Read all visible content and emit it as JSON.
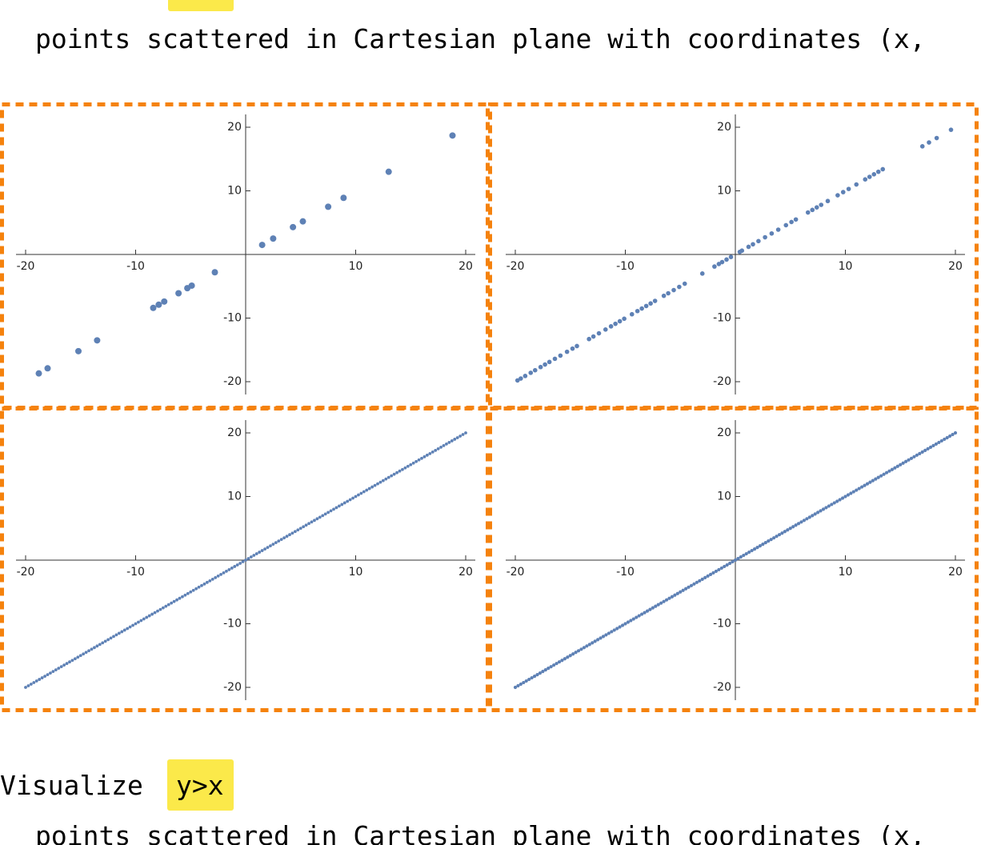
{
  "header": {
    "text": "points scattered in Cartesian plane with coordinates (x,"
  },
  "chart_data": [
    {
      "type": "scatter",
      "color": "#5e81b5",
      "x": [
        -18.8,
        -18,
        -15.2,
        -13.5,
        -8.4,
        -7.9,
        -7.4,
        -6.1,
        -5.3,
        -4.9,
        -2.8,
        1.5,
        2.5,
        4.3,
        5.2,
        7.5,
        8.9,
        13,
        18.8
      ],
      "values": [
        -18.7,
        -17.9,
        -15.2,
        -13.5,
        -8.4,
        -7.9,
        -7.4,
        -6.1,
        -5.3,
        -4.9,
        -2.8,
        1.5,
        2.5,
        4.3,
        5.2,
        7.5,
        8.9,
        13,
        18.7
      ],
      "xlim": [
        -20,
        20
      ],
      "ylim": [
        -20,
        20
      ],
      "xticks": [
        -20,
        -10,
        10,
        20
      ],
      "yticks": [
        -20,
        -10,
        10,
        20
      ]
    },
    {
      "type": "scatter",
      "color": "#5e81b5",
      "x": [
        -19.8,
        -19.5,
        -19.1,
        -18.6,
        -18.2,
        -17.7,
        -17.3,
        -16.9,
        -16.4,
        -15.9,
        -15.3,
        -14.8,
        -14.4,
        -13.3,
        -12.9,
        -12.4,
        -11.8,
        -11.3,
        -10.9,
        -10.5,
        -10.1,
        -9.4,
        -8.9,
        -8.5,
        -8.1,
        -7.7,
        -7.3,
        -6.5,
        -6.1,
        -5.6,
        -5.1,
        -4.6,
        -3,
        -1.9,
        -1.5,
        -1.2,
        -0.8,
        -0.4,
        0.4,
        0.6,
        1.2,
        1.6,
        2.1,
        2.7,
        3.3,
        3.9,
        4.6,
        5.1,
        5.5,
        6.6,
        7,
        7.4,
        7.8,
        8.4,
        9.3,
        9.8,
        10.3,
        11,
        11.8,
        12.2,
        12.6,
        13,
        13.4,
        17,
        17.6,
        18.3,
        19.6
      ],
      "values": [
        -19.8,
        -19.5,
        -19.1,
        -18.6,
        -18.2,
        -17.7,
        -17.3,
        -16.9,
        -16.4,
        -15.9,
        -15.3,
        -14.8,
        -14.4,
        -13.3,
        -12.9,
        -12.4,
        -11.8,
        -11.3,
        -10.9,
        -10.5,
        -10.1,
        -9.4,
        -8.9,
        -8.5,
        -8.1,
        -7.7,
        -7.3,
        -6.5,
        -6.1,
        -5.6,
        -5.1,
        -4.6,
        -3,
        -1.9,
        -1.5,
        -1.2,
        -0.8,
        -0.4,
        0.4,
        0.6,
        1.2,
        1.6,
        2.1,
        2.7,
        3.3,
        3.9,
        4.6,
        5.1,
        5.5,
        6.6,
        7,
        7.4,
        7.8,
        8.4,
        9.3,
        9.8,
        10.3,
        11,
        11.8,
        12.2,
        12.6,
        13,
        13.4,
        17,
        17.6,
        18.3,
        19.6
      ],
      "xlim": [
        -20,
        20
      ],
      "ylim": [
        -20,
        20
      ],
      "xticks": [
        -20,
        -10,
        10,
        20
      ],
      "yticks": [
        -20,
        -10,
        10,
        20
      ]
    },
    {
      "type": "scatter",
      "color": "#5e81b5",
      "x": [
        -20,
        -19.75,
        -19.5,
        -19.25,
        -19,
        -18.75,
        -18.5,
        -18.25,
        -18,
        -17.75,
        -17.5,
        -17.25,
        -17,
        -16.75,
        -16.5,
        -16.25,
        -16,
        -15.75,
        -15.5,
        -15.25,
        -15,
        -14.75,
        -14.5,
        -14.25,
        -14,
        -13.75,
        -13.5,
        -13.25,
        -13,
        -12.75,
        -12.5,
        -12.25,
        -12,
        -11.75,
        -11.5,
        -11.25,
        -11,
        -10.75,
        -10.5,
        -10.25,
        -10,
        -9.75,
        -9.5,
        -9.25,
        -9,
        -8.75,
        -8.5,
        -8.25,
        -8,
        -7.75,
        -7.5,
        -7.25,
        -7,
        -6.75,
        -6.5,
        -6.25,
        -6,
        -5.75,
        -5.5,
        -5.25,
        -5,
        -4.75,
        -4.5,
        -4.25,
        -4,
        -3.75,
        -3.5,
        -3.25,
        -3,
        -2.75,
        -2.5,
        -2.25,
        -2,
        -1.75,
        -1.5,
        -1.25,
        -1,
        -0.75,
        -0.5,
        -0.25,
        0,
        0.25,
        0.5,
        0.75,
        1,
        1.25,
        1.5,
        1.75,
        2,
        2.25,
        2.5,
        2.75,
        3,
        3.25,
        3.5,
        3.75,
        4,
        4.25,
        4.5,
        4.75,
        5,
        5.25,
        5.5,
        5.75,
        6,
        6.25,
        6.5,
        6.75,
        7,
        7.25,
        7.5,
        7.75,
        8,
        8.25,
        8.5,
        8.75,
        9,
        9.25,
        9.5,
        9.75,
        10,
        10.25,
        10.5,
        10.75,
        11,
        11.25,
        11.5,
        11.75,
        12,
        12.25,
        12.5,
        12.75,
        13,
        13.25,
        13.5,
        13.75,
        14,
        14.25,
        14.5,
        14.75,
        15,
        15.25,
        15.5,
        15.75,
        16,
        16.25,
        16.5,
        16.75,
        17,
        17.25,
        17.5,
        17.75,
        18,
        18.25,
        18.5,
        18.75,
        19,
        19.25,
        19.5,
        19.75,
        20
      ],
      "values": [
        -20,
        -19.75,
        -19.5,
        -19.25,
        -19,
        -18.75,
        -18.5,
        -18.25,
        -18,
        -17.75,
        -17.5,
        -17.25,
        -17,
        -16.75,
        -16.5,
        -16.25,
        -16,
        -15.75,
        -15.5,
        -15.25,
        -15,
        -14.75,
        -14.5,
        -14.25,
        -14,
        -13.75,
        -13.5,
        -13.25,
        -13,
        -12.75,
        -12.5,
        -12.25,
        -12,
        -11.75,
        -11.5,
        -11.25,
        -11,
        -10.75,
        -10.5,
        -10.25,
        -10,
        -9.75,
        -9.5,
        -9.25,
        -9,
        -8.75,
        -8.5,
        -8.25,
        -8,
        -7.75,
        -7.5,
        -7.25,
        -7,
        -6.75,
        -6.5,
        -6.25,
        -6,
        -5.75,
        -5.5,
        -5.25,
        -5,
        -4.75,
        -4.5,
        -4.25,
        -4,
        -3.75,
        -3.5,
        -3.25,
        -3,
        -2.75,
        -2.5,
        -2.25,
        -2,
        -1.75,
        -1.5,
        -1.25,
        -1,
        -0.75,
        -0.5,
        -0.25,
        0,
        0.25,
        0.5,
        0.75,
        1,
        1.25,
        1.5,
        1.75,
        2,
        2.25,
        2.5,
        2.75,
        3,
        3.25,
        3.5,
        3.75,
        4,
        4.25,
        4.5,
        4.75,
        5,
        5.25,
        5.5,
        5.75,
        6,
        6.25,
        6.5,
        6.75,
        7,
        7.25,
        7.5,
        7.75,
        8,
        8.25,
        8.5,
        8.75,
        9,
        9.25,
        9.5,
        9.75,
        10,
        10.25,
        10.5,
        10.75,
        11,
        11.25,
        11.5,
        11.75,
        12,
        12.25,
        12.5,
        12.75,
        13,
        13.25,
        13.5,
        13.75,
        14,
        14.25,
        14.5,
        14.75,
        15,
        15.25,
        15.5,
        15.75,
        16,
        16.25,
        16.5,
        16.75,
        17,
        17.25,
        17.5,
        17.75,
        18,
        18.25,
        18.5,
        18.75,
        19,
        19.25,
        19.5,
        19.75,
        20
      ],
      "xlim": [
        -20,
        20
      ],
      "ylim": [
        -20,
        20
      ],
      "xticks": [
        -20,
        -10,
        10,
        20
      ],
      "yticks": [
        -20,
        -10,
        10,
        20
      ]
    },
    {
      "type": "scatter",
      "color": "#5e81b5",
      "x": [
        -20,
        -19.75,
        -19.5,
        -19.25,
        -19,
        -18.75,
        -18.5,
        -18.25,
        -18,
        -17.75,
        -17.5,
        -17.25,
        -17,
        -16.75,
        -16.5,
        -16.25,
        -16,
        -15.75,
        -15.5,
        -15.25,
        -15,
        -14.75,
        -14.5,
        -14.25,
        -14,
        -13.75,
        -13.5,
        -13.25,
        -13,
        -12.75,
        -12.5,
        -12.25,
        -12,
        -11.75,
        -11.5,
        -11.25,
        -11,
        -10.75,
        -10.5,
        -10.25,
        -10,
        -9.75,
        -9.5,
        -9.25,
        -9,
        -8.75,
        -8.5,
        -8.25,
        -8,
        -7.75,
        -7.5,
        -7.25,
        -7,
        -6.75,
        -6.5,
        -6.25,
        -6,
        -5.75,
        -5.5,
        -5.25,
        -5,
        -4.75,
        -4.5,
        -4.25,
        -4,
        -3.75,
        -3.5,
        -3.25,
        -3,
        -2.75,
        -2.5,
        -2.25,
        -2,
        -1.75,
        -1.5,
        -1.25,
        -1,
        -0.75,
        -0.5,
        -0.25,
        0,
        0.25,
        0.5,
        0.75,
        1,
        1.25,
        1.5,
        1.75,
        2,
        2.25,
        2.5,
        2.75,
        3,
        3.25,
        3.5,
        3.75,
        4,
        4.25,
        4.5,
        4.75,
        5,
        5.25,
        5.5,
        5.75,
        6,
        6.25,
        6.5,
        6.75,
        7,
        7.25,
        7.5,
        7.75,
        8,
        8.25,
        8.5,
        8.75,
        9,
        9.25,
        9.5,
        9.75,
        10,
        10.25,
        10.5,
        10.75,
        11,
        11.25,
        11.5,
        11.75,
        12,
        12.25,
        12.5,
        12.75,
        13,
        13.25,
        13.5,
        13.75,
        14,
        14.25,
        14.5,
        14.75,
        15,
        15.25,
        15.5,
        15.75,
        16,
        16.25,
        16.5,
        16.75,
        17,
        17.25,
        17.5,
        17.75,
        18,
        18.25,
        18.5,
        18.75,
        19,
        19.25,
        19.5,
        19.75,
        20
      ],
      "values": [
        -20,
        -19.75,
        -19.5,
        -19.25,
        -19,
        -18.75,
        -18.5,
        -18.25,
        -18,
        -17.75,
        -17.5,
        -17.25,
        -17,
        -16.75,
        -16.5,
        -16.25,
        -16,
        -15.75,
        -15.5,
        -15.25,
        -15,
        -14.75,
        -14.5,
        -14.25,
        -14,
        -13.75,
        -13.5,
        -13.25,
        -13,
        -12.75,
        -12.5,
        -12.25,
        -12,
        -11.75,
        -11.5,
        -11.25,
        -11,
        -10.75,
        -10.5,
        -10.25,
        -10,
        -9.75,
        -9.5,
        -9.25,
        -9,
        -8.75,
        -8.5,
        -8.25,
        -8,
        -7.75,
        -7.5,
        -7.25,
        -7,
        -6.75,
        -6.5,
        -6.25,
        -6,
        -5.75,
        -5.5,
        -5.25,
        -5,
        -4.75,
        -4.5,
        -4.25,
        -4,
        -3.75,
        -3.5,
        -3.25,
        -3,
        -2.75,
        -2.5,
        -2.25,
        -2,
        -1.75,
        -1.5,
        -1.25,
        -1,
        -0.75,
        -0.5,
        -0.25,
        0,
        0.25,
        0.5,
        0.75,
        1,
        1.25,
        1.5,
        1.75,
        2,
        2.25,
        2.5,
        2.75,
        3,
        3.25,
        3.5,
        3.75,
        4,
        4.25,
        4.5,
        4.75,
        5,
        5.25,
        5.5,
        5.75,
        6,
        6.25,
        6.5,
        6.75,
        7,
        7.25,
        7.5,
        7.75,
        8,
        8.25,
        8.5,
        8.75,
        9,
        9.25,
        9.5,
        9.75,
        10,
        10.25,
        10.5,
        10.75,
        11,
        11.25,
        11.5,
        11.75,
        12,
        12.25,
        12.5,
        12.75,
        13,
        13.25,
        13.5,
        13.75,
        14,
        14.25,
        14.5,
        14.75,
        15,
        15.25,
        15.5,
        15.75,
        16,
        16.25,
        16.5,
        16.75,
        17,
        17.25,
        17.5,
        17.75,
        18,
        18.25,
        18.5,
        18.75,
        19,
        19.25,
        19.5,
        19.75,
        20
      ],
      "xlim": [
        -20,
        20
      ],
      "ylim": [
        -20,
        20
      ],
      "xticks": [
        -20,
        -10,
        10,
        20
      ],
      "yticks": [
        -20,
        -10,
        10,
        20
      ]
    }
  ],
  "footer": {
    "prompt": "Visualize",
    "expression": "y>x",
    "text": "points scattered in Cartesian plane with coordinates (x,"
  }
}
